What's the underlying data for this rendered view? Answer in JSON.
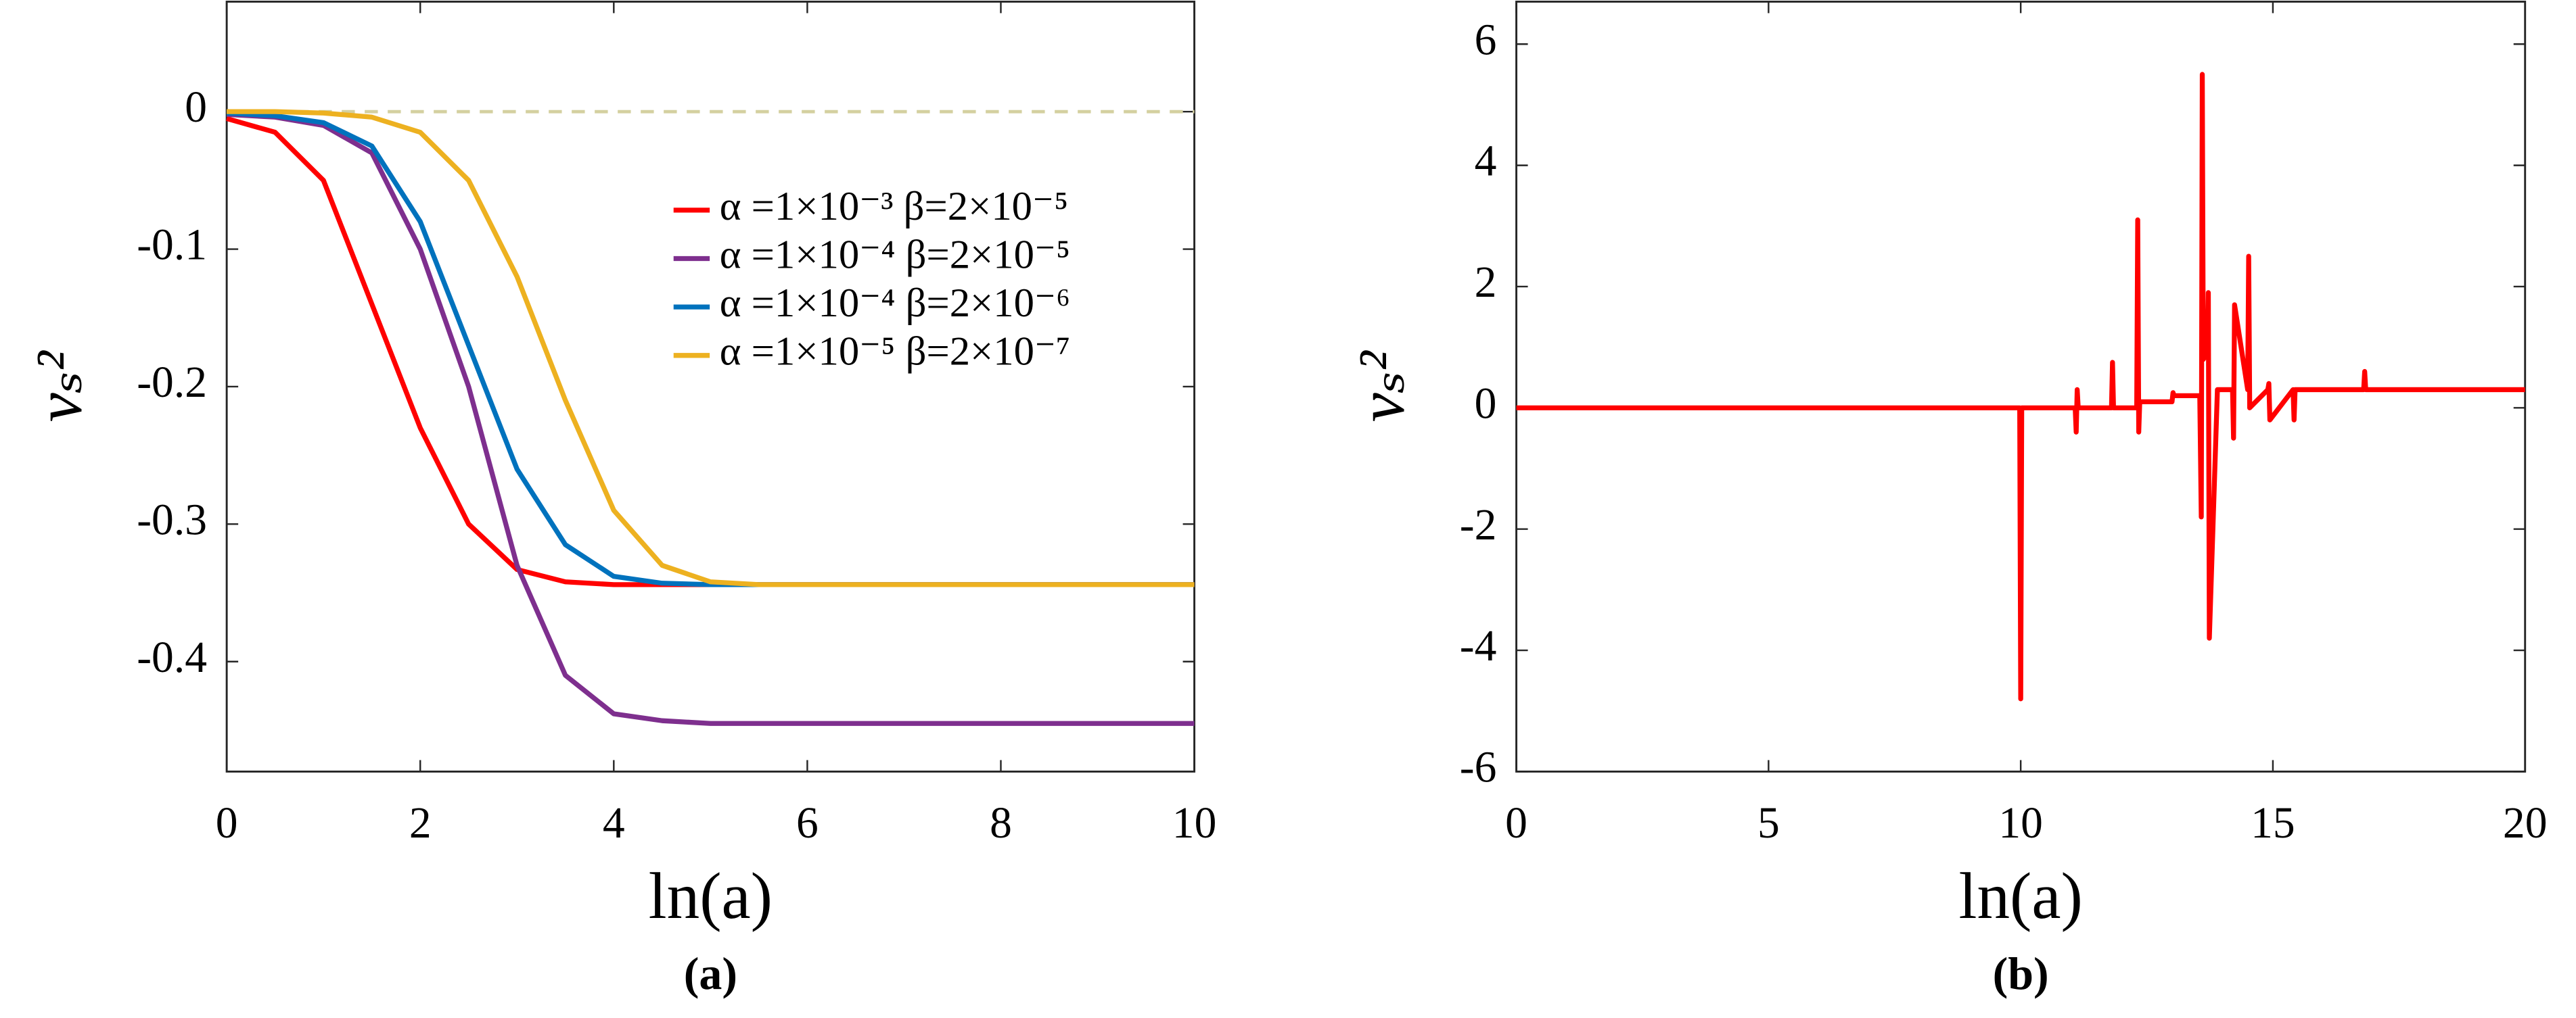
{
  "chart_data": [
    {
      "type": "line",
      "subplot_label": "(a)",
      "xlabel": "ln(a)",
      "ylabel": "vₛ²",
      "x": [
        0,
        0.5,
        1,
        1.5,
        2,
        2.5,
        3,
        3.5,
        4,
        4.5,
        5,
        5.5,
        6,
        6.5,
        7,
        7.5,
        8,
        8.5,
        9,
        9.5,
        10
      ],
      "series": [
        {
          "name": "α =1×10⁻³ β=2×10⁻⁵",
          "color": "#ff0000",
          "values": [
            -0.005,
            -0.015,
            -0.05,
            -0.14,
            -0.23,
            -0.3,
            -0.333,
            -0.342,
            -0.344,
            -0.344,
            -0.344,
            -0.344,
            -0.344,
            -0.344,
            -0.344,
            -0.344,
            -0.344,
            -0.344,
            -0.344,
            -0.344,
            -0.344
          ]
        },
        {
          "name": "α =1×10⁻⁴ β=2×10⁻⁵",
          "color": "#7e2f8e",
          "values": [
            -0.002,
            -0.004,
            -0.01,
            -0.03,
            -0.1,
            -0.2,
            -0.33,
            -0.41,
            -0.438,
            -0.443,
            -0.445,
            -0.445,
            -0.445,
            -0.445,
            -0.445,
            -0.445,
            -0.445,
            -0.445,
            -0.445,
            -0.445,
            -0.445
          ]
        },
        {
          "name": "α =1×10⁻⁴ β=2×10⁻⁶",
          "color": "#0072bd",
          "values": [
            -0.001,
            -0.003,
            -0.008,
            -0.025,
            -0.08,
            -0.17,
            -0.26,
            -0.315,
            -0.338,
            -0.343,
            -0.344,
            -0.344,
            -0.344,
            -0.344,
            -0.344,
            -0.344,
            -0.344,
            -0.344,
            -0.344,
            -0.344,
            -0.344
          ]
        },
        {
          "name": "α =1×10⁻⁵ β=2×10⁻⁷",
          "color": "#edb120",
          "values": [
            0,
            0,
            -0.001,
            -0.004,
            -0.015,
            -0.05,
            -0.12,
            -0.21,
            -0.29,
            -0.33,
            -0.342,
            -0.344,
            -0.344,
            -0.344,
            -0.344,
            -0.344,
            -0.344,
            -0.344,
            -0.344,
            -0.344,
            -0.344
          ]
        }
      ],
      "reference_line": {
        "value": 0,
        "color": "#d4d0a0"
      },
      "xlim": [
        0,
        10
      ],
      "xticks": [
        0,
        2,
        4,
        6,
        8,
        10
      ],
      "ylim": [
        -0.48,
        0.08
      ],
      "yticks": [
        -0.4,
        -0.3,
        -0.2,
        -0.1,
        0
      ],
      "legend": "upper right"
    },
    {
      "type": "line",
      "subplot_label": "(b)",
      "xlabel": "ln(a)",
      "ylabel": "vₛ²",
      "x": [
        0,
        9.98,
        10.0,
        10.02,
        11.08,
        11.1,
        11.12,
        11.14,
        11.8,
        11.82,
        11.84,
        12.3,
        12.32,
        12.34,
        12.36,
        13,
        13.02,
        13.04,
        13.55,
        13.58,
        13.6,
        13.62,
        13.7,
        13.72,
        13.74,
        13.9,
        14.2,
        14.22,
        14.24,
        14.5,
        14.52,
        14.54,
        14.9,
        14.92,
        14.94,
        15.4,
        15.42,
        15.44,
        16.8,
        16.82,
        16.84,
        20
      ],
      "series": [
        {
          "color": "#ff0000",
          "values": [
            0,
            0,
            -4.8,
            0,
            0,
            -0.4,
            0.3,
            0,
            0,
            0.75,
            0,
            0,
            3.1,
            -0.4,
            0.1,
            0.1,
            0.25,
            0.2,
            0.2,
            -1.8,
            5.5,
            0.8,
            0.9,
            1.9,
            -3.8,
            0.3,
            0.3,
            -0.5,
            1.7,
            0.3,
            2.5,
            0,
            0.3,
            0.4,
            -0.2,
            0.3,
            -0.2,
            0.3,
            0.3,
            0.6,
            0.3,
            0.3
          ]
        }
      ],
      "xlim": [
        0,
        20
      ],
      "xticks": [
        0,
        5,
        10,
        15,
        20
      ],
      "ylim": [
        -6,
        6.7
      ],
      "yticks": [
        -6,
        -4,
        -2,
        0,
        2,
        4,
        6
      ]
    }
  ]
}
